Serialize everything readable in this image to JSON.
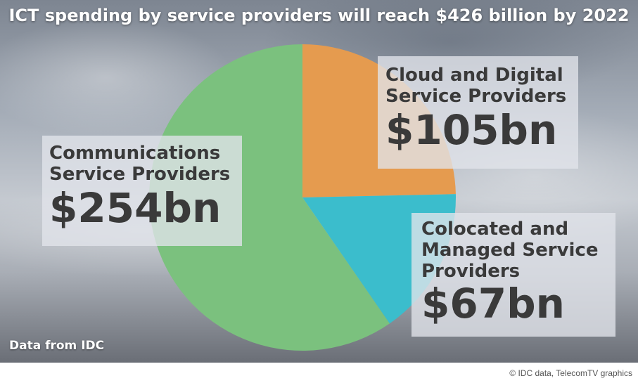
{
  "chart_data": {
    "type": "pie",
    "title": "ICT spending by service providers will reach $426 billion by 2022",
    "categories": [
      "Communications Service Providers",
      "Cloud and Digital Service Providers",
      "Colocated and Managed Service Providers"
    ],
    "values": [
      254,
      105,
      67
    ],
    "value_labels": [
      "$254bn",
      "$105bn",
      "$67bn"
    ],
    "colors": [
      "#7bc17e",
      "#e59b4f",
      "#3bbdcc"
    ],
    "unit": "bn",
    "legend": "none"
  },
  "labels": {
    "csp_line1": "Communications",
    "csp_line2": "Service Providers",
    "cloud_line1": "Cloud and Digital",
    "cloud_line2": "Service Providers",
    "coloc_line1": "Colocated and",
    "coloc_line2": "Managed Service",
    "coloc_line3": "Providers"
  },
  "footer": {
    "source": "Data from IDC",
    "credit": "© IDC data, TelecomTV graphics"
  }
}
